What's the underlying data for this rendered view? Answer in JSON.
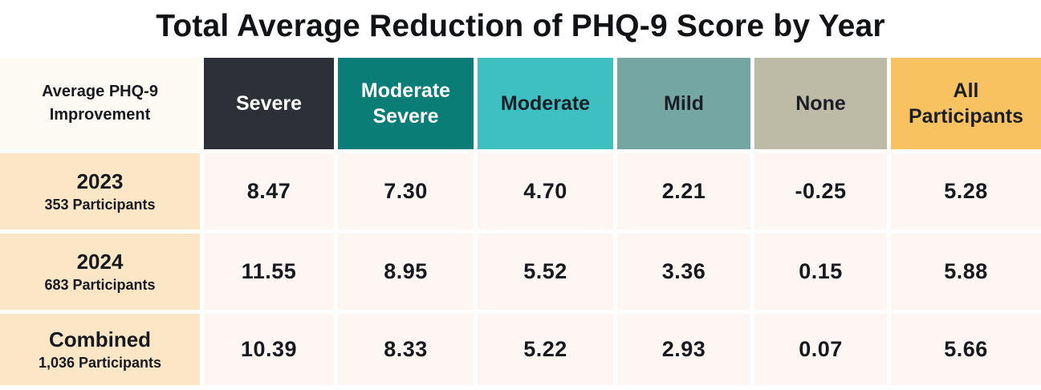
{
  "title": "Total Average Reduction of PHQ-9 Score by Year",
  "table": {
    "corner_header": {
      "line1": "Average PHQ-9",
      "line2": "Improvement"
    },
    "columns": [
      {
        "label": "Severe",
        "bg": "#2e3038",
        "fg": "#ffffff"
      },
      {
        "label": "Moderate Severe",
        "bg": "#0a7d77",
        "fg": "#ffffff"
      },
      {
        "label": "Moderate",
        "bg": "#3fc0c0",
        "fg": "#1b1e26"
      },
      {
        "label": "Mild",
        "bg": "#74a7a3",
        "fg": "#1b1e26"
      },
      {
        "label": "None",
        "bg": "#bdbaa5",
        "fg": "#1b1e26"
      },
      {
        "label": "All Participants",
        "bg": "#f7c25f",
        "fg": "#1b1e26"
      }
    ],
    "rows": [
      {
        "label": "2023",
        "sublabel": "353 Participants",
        "values": [
          "8.47",
          "7.30",
          "4.70",
          "2.21",
          "-0.25",
          "5.28"
        ]
      },
      {
        "label": "2024",
        "sublabel": "683 Participants",
        "values": [
          "11.55",
          "8.95",
          "5.52",
          "3.36",
          "0.15",
          "5.88"
        ]
      },
      {
        "label": "Combined",
        "sublabel": "1,036 Participants",
        "values": [
          "10.39",
          "8.33",
          "5.22",
          "2.93",
          "0.07",
          "5.66"
        ]
      }
    ],
    "row_header_bg": "#fbe7c5",
    "value_cell_bg": "#fdf6f3",
    "corner_bg": "#fdf9f3"
  },
  "chart_data": {
    "type": "table",
    "title": "Total Average Reduction of PHQ-9 Score by Year",
    "row_header": "Average PHQ-9 Improvement",
    "columns": [
      "Severe",
      "Moderate Severe",
      "Moderate",
      "Mild",
      "None",
      "All Participants"
    ],
    "rows": [
      {
        "label": "2023",
        "participants": 353,
        "values": [
          8.47,
          7.3,
          4.7,
          2.21,
          -0.25,
          5.28
        ]
      },
      {
        "label": "2024",
        "participants": 683,
        "values": [
          11.55,
          8.95,
          5.52,
          3.36,
          0.15,
          5.88
        ]
      },
      {
        "label": "Combined",
        "participants": 1036,
        "values": [
          10.39,
          8.33,
          5.22,
          2.93,
          0.07,
          5.66
        ]
      }
    ]
  }
}
